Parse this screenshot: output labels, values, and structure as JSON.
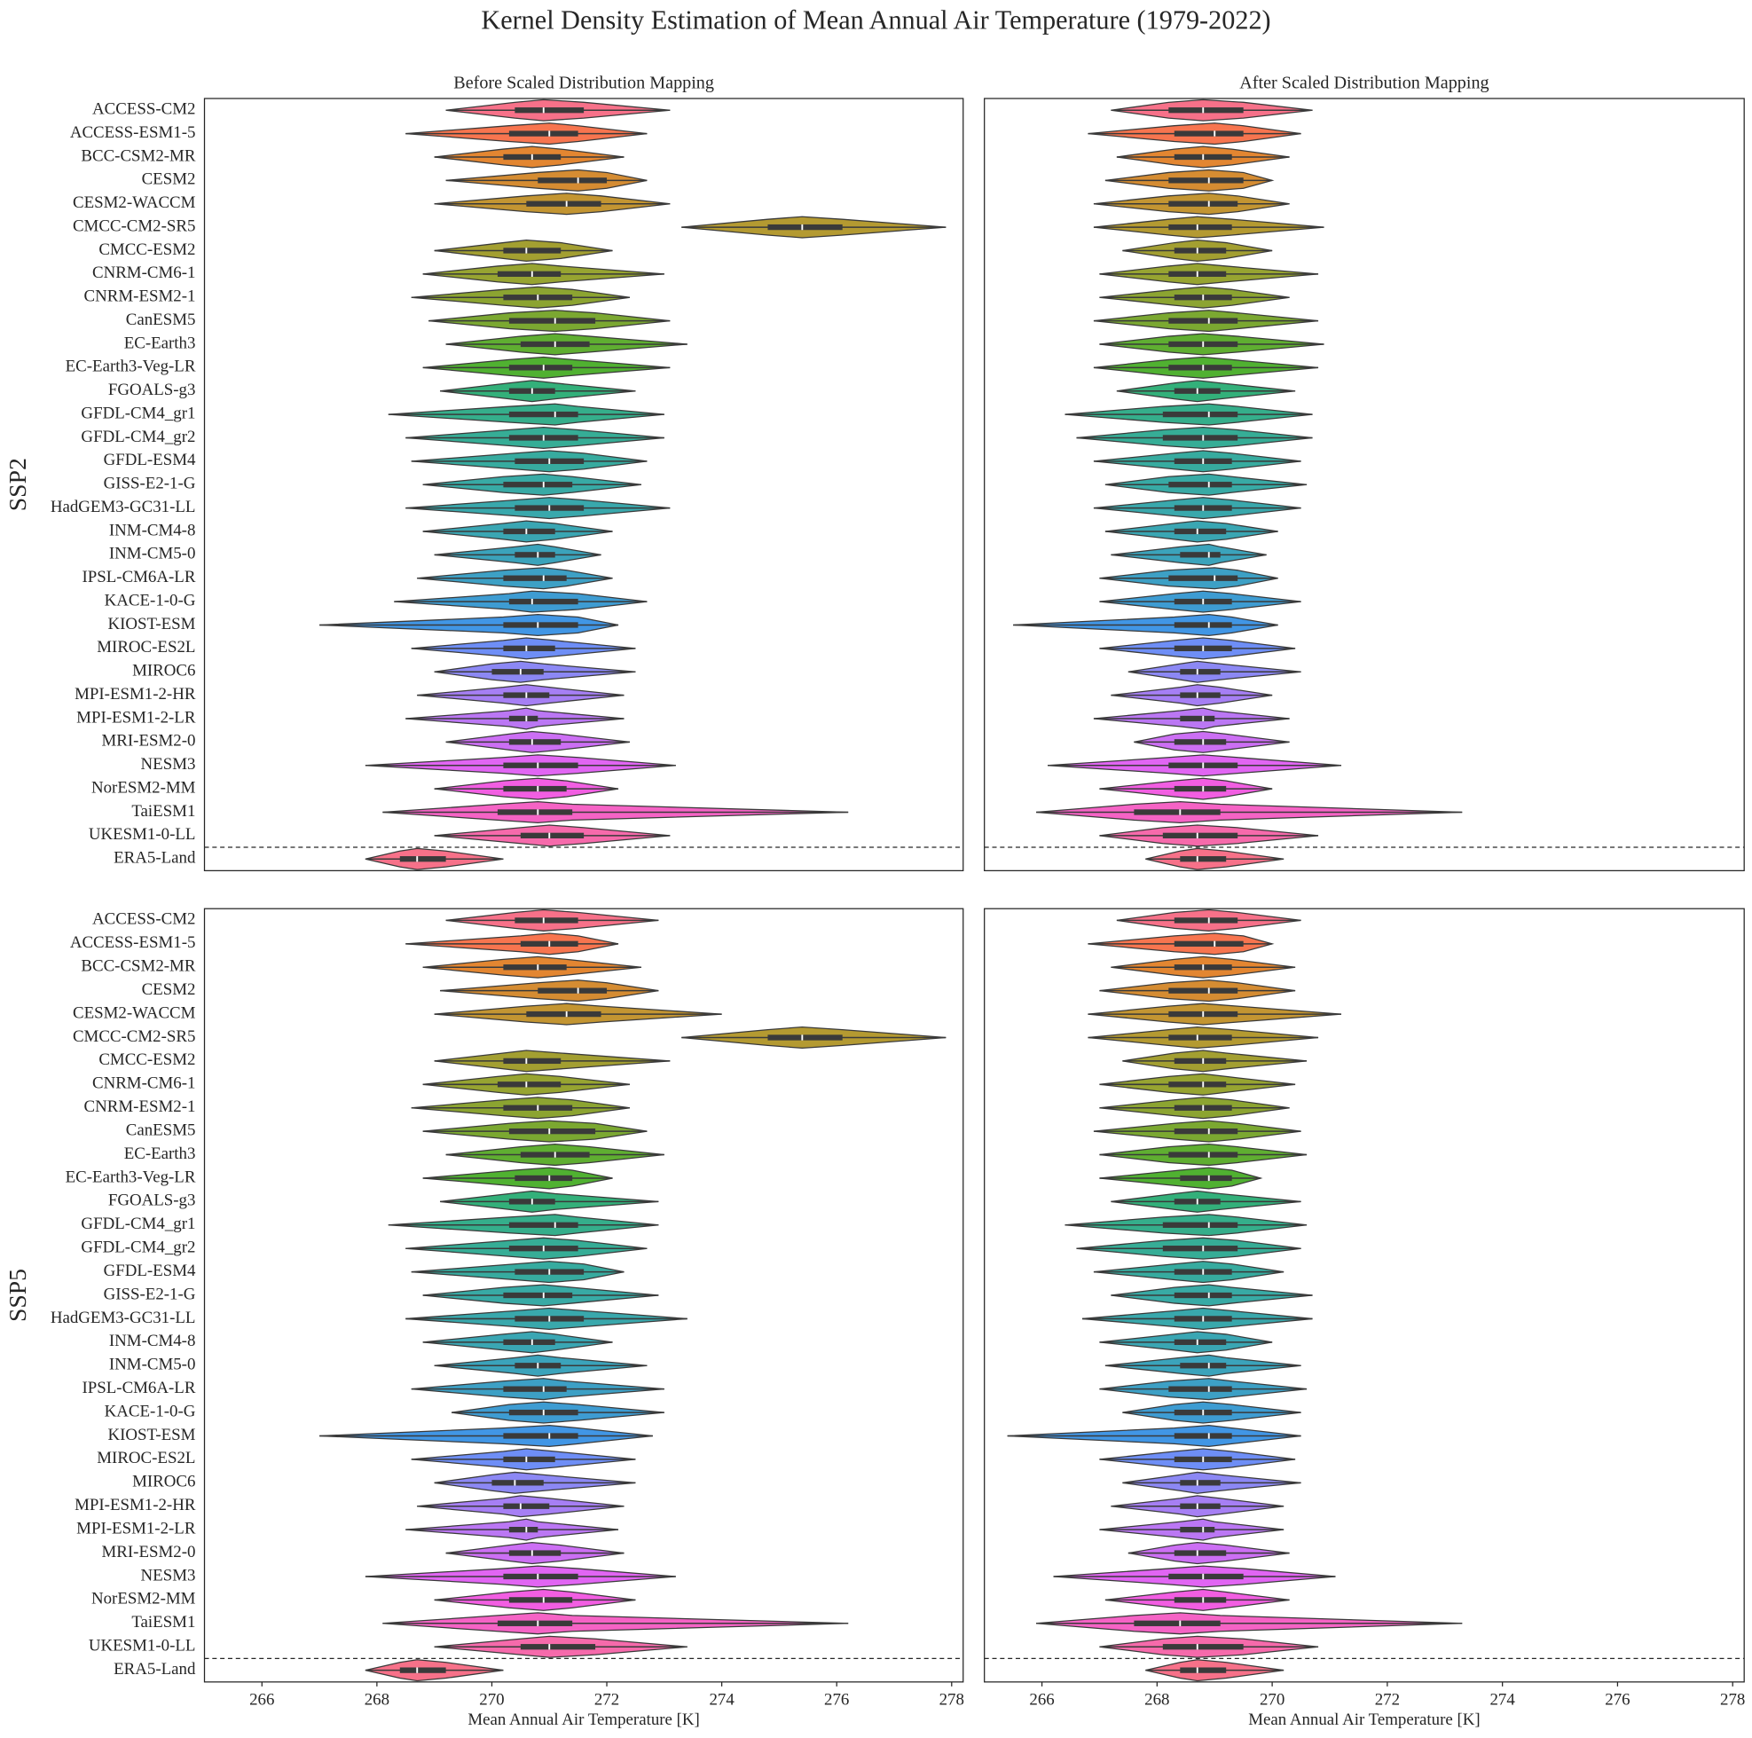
{
  "title": "Kernel Density Estimation of Mean Annual Air Temperature (1979-2022)",
  "categories": [
    "ACCESS-CM2",
    "ACCESS-ESM1-5",
    "BCC-CSM2-MR",
    "CESM2",
    "CESM2-WACCM",
    "CMCC-CM2-SR5",
    "CMCC-ESM2",
    "CNRM-CM6-1",
    "CNRM-ESM2-1",
    "CanESM5",
    "EC-Earth3",
    "EC-Earth3-Veg-LR",
    "FGOALS-g3",
    "GFDL-CM4_gr1",
    "GFDL-CM4_gr2",
    "GFDL-ESM4",
    "GISS-E2-1-G",
    "HadGEM3-GC31-LL",
    "INM-CM4-8",
    "INM-CM5-0",
    "IPSL-CM6A-LR",
    "KACE-1-0-G",
    "KIOST-ESM",
    "MIROC-ES2L",
    "MIROC6",
    "MPI-ESM1-2-HR",
    "MPI-ESM1-2-LR",
    "MRI-ESM2-0",
    "NESM3",
    "NorESM2-MM",
    "TaiESM1",
    "UKESM1-0-LL",
    "ERA5-Land"
  ],
  "colors": [
    "#f77189",
    "#f7754f",
    "#e38631",
    "#d58c32",
    "#c39532",
    "#b49a31",
    "#a39f31",
    "#97a431",
    "#8ca431",
    "#7ba831",
    "#5fae31",
    "#50b131",
    "#33b07a",
    "#35ae8b",
    "#36ad96",
    "#37ab9f",
    "#38aaa5",
    "#39a8ac",
    "#3aa6b3",
    "#3ba3bb",
    "#3da0c5",
    "#3e9cd2",
    "#4196e5",
    "#6e8ef6",
    "#8c88f4",
    "#a67ff4",
    "#bb77f4",
    "#cc6ff4",
    "#e165f3",
    "#f25ee2",
    "#f563c5",
    "#f66aab",
    "#f77189"
  ],
  "chart_data": [
    {
      "type": "violin",
      "title": "Before Scaled Distribution Mapping",
      "row_label": "SSP2",
      "xlim": [
        265,
        278.2
      ],
      "values": [
        [
          269.2,
          270.4,
          270.9,
          271.6,
          273.1
        ],
        [
          268.5,
          270.3,
          271.0,
          271.5,
          272.7
        ],
        [
          269.0,
          270.2,
          270.7,
          271.2,
          272.3
        ],
        [
          269.2,
          270.8,
          271.5,
          272.0,
          272.7
        ],
        [
          269.0,
          270.6,
          271.3,
          271.9,
          273.1
        ],
        [
          273.3,
          274.8,
          275.4,
          276.1,
          277.9
        ],
        [
          269.0,
          270.2,
          270.6,
          271.2,
          272.1
        ],
        [
          268.8,
          270.1,
          270.7,
          271.2,
          273.0
        ],
        [
          268.6,
          270.2,
          270.8,
          271.4,
          272.4
        ],
        [
          268.9,
          270.3,
          271.1,
          271.8,
          273.1
        ],
        [
          269.2,
          270.5,
          271.1,
          271.7,
          273.4
        ],
        [
          268.8,
          270.3,
          270.9,
          271.4,
          273.1
        ],
        [
          269.1,
          270.3,
          270.7,
          271.1,
          272.5
        ],
        [
          268.2,
          270.3,
          271.1,
          271.5,
          273.0
        ],
        [
          268.5,
          270.3,
          270.9,
          271.5,
          273.0
        ],
        [
          268.6,
          270.4,
          271.0,
          271.6,
          272.7
        ],
        [
          268.8,
          270.2,
          270.9,
          271.4,
          272.6
        ],
        [
          268.5,
          270.4,
          271.0,
          271.6,
          273.1
        ],
        [
          268.8,
          270.2,
          270.6,
          271.1,
          272.1
        ],
        [
          269.0,
          270.4,
          270.8,
          271.1,
          271.9
        ],
        [
          268.7,
          270.2,
          270.9,
          271.3,
          272.1
        ],
        [
          268.3,
          270.3,
          270.7,
          271.5,
          272.7
        ],
        [
          267.0,
          270.2,
          270.8,
          271.5,
          272.2
        ],
        [
          268.6,
          270.2,
          270.6,
          271.1,
          272.5
        ],
        [
          269.0,
          270.0,
          270.5,
          270.9,
          272.5
        ],
        [
          268.7,
          270.2,
          270.6,
          271.0,
          272.3
        ],
        [
          268.5,
          270.3,
          270.6,
          270.8,
          272.3
        ],
        [
          269.2,
          270.3,
          270.7,
          271.2,
          272.4
        ],
        [
          267.8,
          270.2,
          270.8,
          271.5,
          273.2
        ],
        [
          269.0,
          270.2,
          270.8,
          271.3,
          272.2
        ],
        [
          268.1,
          270.1,
          270.8,
          271.4,
          276.2
        ],
        [
          269.0,
          270.5,
          271.0,
          271.6,
          273.1
        ],
        [
          267.8,
          268.4,
          268.7,
          269.2,
          270.2
        ]
      ]
    },
    {
      "type": "violin",
      "title": "After Scaled Distribution Mapping",
      "xlim": [
        265,
        278.2
      ],
      "values": [
        [
          267.2,
          268.2,
          268.8,
          269.5,
          270.7
        ],
        [
          266.8,
          268.3,
          269.0,
          269.5,
          270.5
        ],
        [
          267.3,
          268.3,
          268.8,
          269.3,
          270.3
        ],
        [
          267.1,
          268.2,
          268.9,
          269.5,
          270.0
        ],
        [
          266.9,
          268.2,
          268.9,
          269.4,
          270.3
        ],
        [
          266.9,
          268.2,
          268.7,
          269.3,
          270.9
        ],
        [
          267.4,
          268.3,
          268.7,
          269.2,
          270.0
        ],
        [
          267.0,
          268.2,
          268.7,
          269.2,
          270.8
        ],
        [
          267.0,
          268.3,
          268.8,
          269.3,
          270.3
        ],
        [
          266.9,
          268.2,
          268.9,
          269.4,
          270.8
        ],
        [
          267.0,
          268.2,
          268.8,
          269.4,
          270.9
        ],
        [
          266.9,
          268.2,
          268.8,
          269.3,
          270.8
        ],
        [
          267.3,
          268.3,
          268.7,
          269.1,
          270.4
        ],
        [
          266.4,
          268.1,
          268.9,
          269.4,
          270.7
        ],
        [
          266.6,
          268.1,
          268.8,
          269.4,
          270.7
        ],
        [
          266.9,
          268.3,
          268.8,
          269.3,
          270.5
        ],
        [
          267.1,
          268.2,
          268.9,
          269.3,
          270.6
        ],
        [
          266.9,
          268.3,
          268.8,
          269.3,
          270.5
        ],
        [
          267.1,
          268.3,
          268.7,
          269.2,
          270.1
        ],
        [
          267.2,
          268.4,
          268.9,
          269.1,
          269.9
        ],
        [
          267.0,
          268.2,
          269.0,
          269.4,
          270.1
        ],
        [
          267.0,
          268.3,
          268.8,
          269.3,
          270.5
        ],
        [
          265.5,
          268.3,
          268.9,
          269.3,
          270.1
        ],
        [
          267.0,
          268.3,
          268.8,
          269.3,
          270.4
        ],
        [
          267.5,
          268.4,
          268.7,
          269.1,
          270.5
        ],
        [
          267.2,
          268.4,
          268.7,
          269.1,
          270.0
        ],
        [
          266.9,
          268.4,
          268.8,
          269.0,
          270.3
        ],
        [
          267.6,
          268.3,
          268.8,
          269.2,
          270.3
        ],
        [
          266.1,
          268.2,
          268.8,
          269.4,
          271.2
        ],
        [
          267.0,
          268.3,
          268.8,
          269.2,
          270.0
        ],
        [
          265.9,
          267.6,
          268.4,
          269.1,
          273.3
        ],
        [
          267.0,
          268.1,
          268.7,
          269.4,
          270.8
        ],
        [
          267.8,
          268.4,
          268.7,
          269.2,
          270.2
        ]
      ]
    },
    {
      "type": "violin",
      "row_label": "SSP5",
      "xlim": [
        265,
        278.2
      ],
      "xticks": [
        266,
        268,
        270,
        272,
        274,
        276,
        278
      ],
      "xlabel": "Mean Annual Air Temperature [K]",
      "values": [
        [
          269.2,
          270.4,
          270.9,
          271.5,
          272.9
        ],
        [
          268.5,
          270.5,
          271.0,
          271.5,
          272.2
        ],
        [
          268.8,
          270.2,
          270.8,
          271.3,
          272.6
        ],
        [
          269.1,
          270.8,
          271.5,
          272.0,
          272.9
        ],
        [
          269.0,
          270.6,
          271.3,
          271.9,
          274.0
        ],
        [
          273.3,
          274.8,
          275.4,
          276.1,
          277.9
        ],
        [
          269.0,
          270.2,
          270.6,
          271.2,
          273.1
        ],
        [
          268.8,
          270.1,
          270.6,
          271.2,
          272.4
        ],
        [
          268.6,
          270.2,
          270.8,
          271.4,
          272.4
        ],
        [
          268.8,
          270.3,
          271.0,
          271.8,
          272.7
        ],
        [
          269.2,
          270.5,
          271.1,
          271.7,
          273.0
        ],
        [
          268.8,
          270.4,
          271.0,
          271.4,
          272.1
        ],
        [
          269.1,
          270.3,
          270.7,
          271.1,
          272.9
        ],
        [
          268.2,
          270.3,
          271.1,
          271.5,
          272.9
        ],
        [
          268.5,
          270.3,
          270.9,
          271.5,
          272.7
        ],
        [
          268.6,
          270.4,
          271.0,
          271.6,
          272.3
        ],
        [
          268.8,
          270.2,
          270.9,
          271.4,
          272.9
        ],
        [
          268.5,
          270.4,
          271.0,
          271.6,
          273.4
        ],
        [
          268.8,
          270.2,
          270.7,
          271.1,
          272.1
        ],
        [
          269.0,
          270.4,
          270.8,
          271.2,
          272.7
        ],
        [
          268.6,
          270.2,
          270.9,
          271.3,
          273.0
        ],
        [
          269.3,
          270.3,
          270.9,
          271.5,
          273.0
        ],
        [
          267.0,
          270.2,
          271.0,
          271.5,
          272.8
        ],
        [
          268.6,
          270.2,
          270.6,
          271.1,
          272.5
        ],
        [
          269.0,
          270.0,
          270.4,
          270.9,
          272.5
        ],
        [
          268.7,
          270.2,
          270.5,
          271.0,
          272.3
        ],
        [
          268.5,
          270.3,
          270.6,
          270.8,
          272.2
        ],
        [
          269.2,
          270.3,
          270.7,
          271.2,
          272.3
        ],
        [
          267.8,
          270.2,
          270.8,
          271.5,
          273.2
        ],
        [
          269.0,
          270.3,
          270.9,
          271.4,
          272.5
        ],
        [
          268.1,
          270.1,
          270.8,
          271.4,
          276.2
        ],
        [
          269.0,
          270.5,
          271.0,
          271.8,
          273.4
        ],
        [
          267.8,
          268.4,
          268.7,
          269.2,
          270.2
        ]
      ]
    },
    {
      "type": "violin",
      "xlim": [
        265,
        278.2
      ],
      "xticks": [
        266,
        268,
        270,
        272,
        274,
        276,
        278
      ],
      "xlabel": "Mean Annual Air Temperature [K]",
      "values": [
        [
          267.3,
          268.3,
          268.9,
          269.4,
          270.5
        ],
        [
          266.8,
          268.3,
          269.0,
          269.5,
          270.0
        ],
        [
          267.2,
          268.3,
          268.8,
          269.3,
          270.4
        ],
        [
          267.0,
          268.2,
          268.9,
          269.4,
          270.4
        ],
        [
          266.8,
          268.2,
          268.8,
          269.4,
          271.2
        ],
        [
          266.8,
          268.2,
          268.7,
          269.3,
          270.8
        ],
        [
          267.4,
          268.3,
          268.8,
          269.2,
          270.6
        ],
        [
          267.0,
          268.2,
          268.8,
          269.2,
          270.4
        ],
        [
          267.0,
          268.3,
          268.8,
          269.3,
          270.3
        ],
        [
          266.9,
          268.3,
          268.9,
          269.4,
          270.5
        ],
        [
          267.0,
          268.2,
          268.9,
          269.4,
          270.6
        ],
        [
          267.0,
          268.4,
          268.9,
          269.3,
          269.8
        ],
        [
          267.2,
          268.3,
          268.7,
          269.1,
          270.5
        ],
        [
          266.4,
          268.1,
          268.9,
          269.4,
          270.6
        ],
        [
          266.6,
          268.1,
          268.8,
          269.4,
          270.5
        ],
        [
          266.9,
          268.3,
          268.8,
          269.3,
          270.2
        ],
        [
          267.2,
          268.3,
          268.9,
          269.3,
          270.7
        ],
        [
          266.7,
          268.3,
          268.8,
          269.3,
          270.7
        ],
        [
          267.0,
          268.3,
          268.7,
          269.2,
          270.0
        ],
        [
          267.1,
          268.4,
          268.9,
          269.2,
          270.5
        ],
        [
          267.0,
          268.2,
          268.9,
          269.3,
          270.6
        ],
        [
          267.4,
          268.3,
          268.8,
          269.3,
          270.5
        ],
        [
          265.4,
          268.3,
          268.9,
          269.3,
          270.5
        ],
        [
          267.0,
          268.3,
          268.8,
          269.3,
          270.4
        ],
        [
          267.4,
          268.4,
          268.7,
          269.1,
          270.5
        ],
        [
          267.2,
          268.4,
          268.7,
          269.1,
          270.2
        ],
        [
          267.0,
          268.4,
          268.8,
          269.0,
          270.2
        ],
        [
          267.5,
          268.3,
          268.7,
          269.2,
          270.3
        ],
        [
          266.2,
          268.2,
          268.8,
          269.5,
          271.1
        ],
        [
          267.1,
          268.3,
          268.8,
          269.2,
          270.3
        ],
        [
          265.9,
          267.6,
          268.4,
          269.1,
          273.3
        ],
        [
          267.0,
          268.1,
          268.7,
          269.5,
          270.8
        ],
        [
          267.8,
          268.4,
          268.7,
          269.2,
          270.2
        ]
      ]
    }
  ]
}
